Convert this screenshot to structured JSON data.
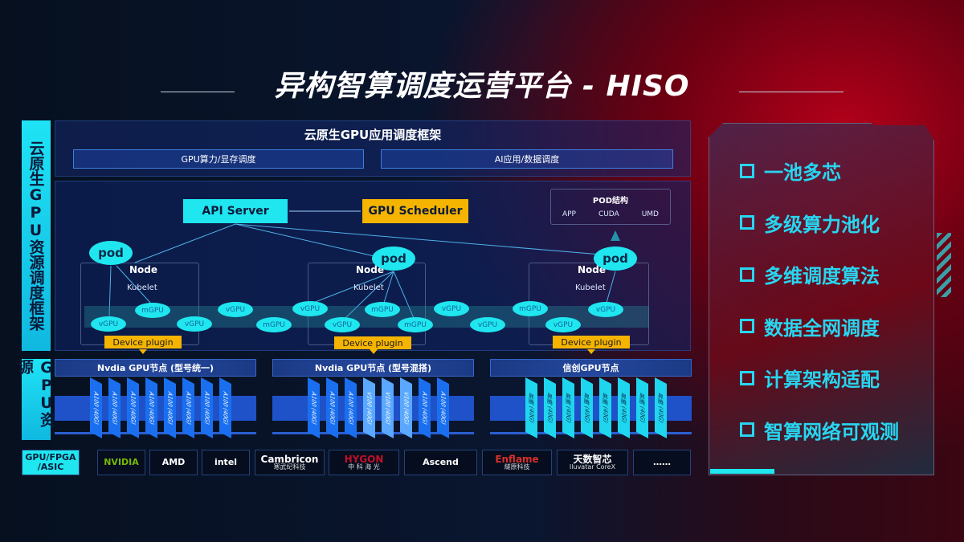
{
  "title": "异构智算调度运营平台 - HISO",
  "side_labels": {
    "framework": "云原生GPU资源调度框架",
    "resources": "GPU资源"
  },
  "framework": {
    "header": "云原生GPU应用调度框架",
    "sub_left": "GPU算力/显存调度",
    "sub_right": "AI应用/数据调度",
    "api_server": "API Server",
    "gpu_scheduler": "GPU Scheduler",
    "pod_structure": {
      "title": "POD结构",
      "items": [
        "APP",
        "CUDA",
        "UMD"
      ]
    },
    "pod_label": "pod",
    "node_label": "Node",
    "kubelet_label": "Kubelet",
    "device_plugin": "Device plugin",
    "units": [
      "vGPU",
      "mGPU",
      "vGPU",
      "vGPU",
      "mGPU",
      "vGPU",
      "vGPU",
      "mGPU",
      "mGPU",
      "vGPU",
      "vGPU",
      "mGPU",
      "vGPU",
      "vGPU"
    ]
  },
  "gpu_groups": [
    {
      "title": "Nvdia GPU节点 (型号统一)",
      "cards": [
        "A100 (40G)",
        "A100 (40G)",
        "A100 (40G)",
        "A100 (40G)",
        "A100 (40G)",
        "A100 (40G)",
        "A100 (40G)",
        "A100 (40G)"
      ]
    },
    {
      "title": "Nvdia GPU节点 (型号混搭)",
      "cards": [
        "A100 (40G)",
        "A100 (40G)",
        "A100 (40G)",
        "V100 (40G)",
        "V100 (40G)",
        "V100 (40G)",
        "A100 (40G)",
        "A100 (40G)"
      ]
    },
    {
      "title": "信创GPU节点",
      "cards": [
        "昇腾 (40G)",
        "昇腾 (40G)",
        "昇腾 (40G)",
        "昇腾 (40G)",
        "昇腾 (40G)",
        "昇腾 (40G)",
        "昇腾 (40G)",
        "昇腾 (40G)"
      ]
    }
  ],
  "vendor_label": [
    "GPU/FPGA",
    "/ASIC"
  ],
  "vendors": [
    {
      "name": "NVIDIA",
      "sub": "",
      "color": "#76b900"
    },
    {
      "name": "AMD",
      "sub": "",
      "color": "#ffffff"
    },
    {
      "name": "intel",
      "sub": "",
      "color": "#ffffff"
    },
    {
      "name": "Cambricon",
      "sub": "寒武纪科技",
      "color": "#ffffff"
    },
    {
      "name": "HYGON",
      "sub": "中 科 海 光",
      "color": "#c0102a"
    },
    {
      "name": "Ascend",
      "sub": "",
      "color": "#ffffff"
    },
    {
      "name": "Enflame",
      "sub": "燧原科技",
      "color": "#d8302a"
    },
    {
      "name": "天数智芯",
      "sub": "Iluvatar CoreX",
      "color": "#ffffff"
    },
    {
      "name": "……",
      "sub": "",
      "color": "#ffffff"
    }
  ],
  "features": [
    "一池多芯",
    "多级算力池化",
    "多维调度算法",
    "数据全网调度",
    "计算架构适配",
    "智算网络可观测"
  ],
  "colors": {
    "cyan": "#1fe6ef",
    "orange": "#f5b400",
    "blue": "#1f52c8",
    "red": "#b3001a"
  }
}
